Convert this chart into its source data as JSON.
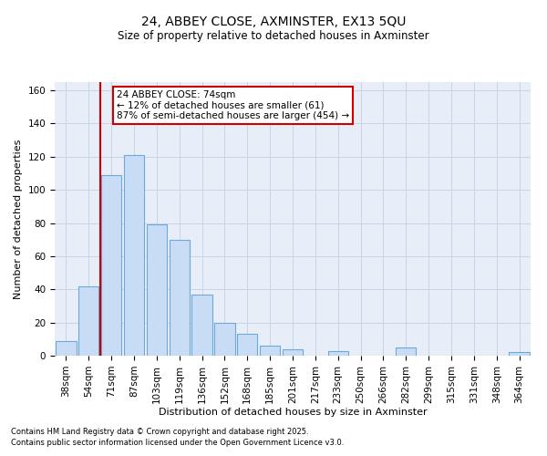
{
  "title1": "24, ABBEY CLOSE, AXMINSTER, EX13 5QU",
  "title2": "Size of property relative to detached houses in Axminster",
  "xlabel": "Distribution of detached houses by size in Axminster",
  "ylabel": "Number of detached properties",
  "categories": [
    "38sqm",
    "54sqm",
    "71sqm",
    "87sqm",
    "103sqm",
    "119sqm",
    "136sqm",
    "152sqm",
    "168sqm",
    "185sqm",
    "201sqm",
    "217sqm",
    "233sqm",
    "250sqm",
    "266sqm",
    "282sqm",
    "299sqm",
    "315sqm",
    "331sqm",
    "348sqm",
    "364sqm"
  ],
  "values": [
    9,
    42,
    109,
    121,
    79,
    70,
    37,
    20,
    13,
    6,
    4,
    0,
    3,
    0,
    0,
    5,
    0,
    0,
    0,
    0,
    2
  ],
  "bar_color": "#c8ddf5",
  "bar_edge_color": "#6ea8d8",
  "vline_x_index": 2,
  "annotation_title": "24 ABBEY CLOSE: 74sqm",
  "annotation_line1": "← 12% of detached houses are smaller (61)",
  "annotation_line2": "87% of semi-detached houses are larger (454) →",
  "box_edge_color": "#cc0000",
  "footnote1": "Contains HM Land Registry data © Crown copyright and database right 2025.",
  "footnote2": "Contains public sector information licensed under the Open Government Licence v3.0.",
  "ylim": [
    0,
    165
  ],
  "yticks": [
    0,
    20,
    40,
    60,
    80,
    100,
    120,
    140,
    160
  ],
  "grid_color": "#c8d4e8",
  "bg_color": "#e8eef8",
  "title_fontsize": 10,
  "subtitle_fontsize": 8.5,
  "axis_label_fontsize": 8,
  "tick_fontsize": 7.5,
  "annot_fontsize": 7.5,
  "footnote_fontsize": 6
}
